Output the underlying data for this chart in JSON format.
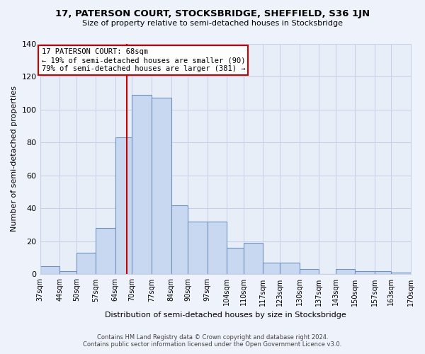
{
  "title": "17, PATERSON COURT, STOCKSBRIDGE, SHEFFIELD, S36 1JN",
  "subtitle": "Size of property relative to semi-detached houses in Stocksbridge",
  "xlabel": "Distribution of semi-detached houses by size in Stocksbridge",
  "ylabel": "Number of semi-detached properties",
  "bar_color": "#c8d8f0",
  "bar_edge_color": "#7090c0",
  "bin_edges": [
    37,
    44,
    50,
    57,
    64,
    70,
    77,
    84,
    90,
    97,
    104,
    110,
    117,
    123,
    130,
    137,
    143,
    150,
    157,
    163,
    170
  ],
  "bin_labels": [
    "37sqm",
    "44sqm",
    "50sqm",
    "57sqm",
    "64sqm",
    "70sqm",
    "77sqm",
    "84sqm",
    "90sqm",
    "97sqm",
    "104sqm",
    "110sqm",
    "117sqm",
    "123sqm",
    "130sqm",
    "137sqm",
    "143sqm",
    "150sqm",
    "157sqm",
    "163sqm",
    "170sqm"
  ],
  "bar_heights": [
    5,
    2,
    13,
    28,
    83,
    109,
    107,
    42,
    32,
    32,
    16,
    19,
    7,
    7,
    3,
    0,
    3,
    2,
    2,
    1
  ],
  "ylim": [
    0,
    140
  ],
  "yticks": [
    0,
    20,
    40,
    60,
    80,
    100,
    120,
    140
  ],
  "property_line_x": 68,
  "annotation_title": "17 PATERSON COURT: 68sqm",
  "annotation_line1": "← 19% of semi-detached houses are smaller (90)",
  "annotation_line2": "79% of semi-detached houses are larger (381) →",
  "annotation_box_color": "#ffffff",
  "annotation_box_edge": "#cc0000",
  "property_line_color": "#cc0000",
  "footer_line1": "Contains HM Land Registry data © Crown copyright and database right 2024.",
  "footer_line2": "Contains public sector information licensed under the Open Government Licence v3.0.",
  "bg_color": "#eef2fa",
  "plot_bg_color": "#e8eef8",
  "grid_color": "#c5cfe8"
}
